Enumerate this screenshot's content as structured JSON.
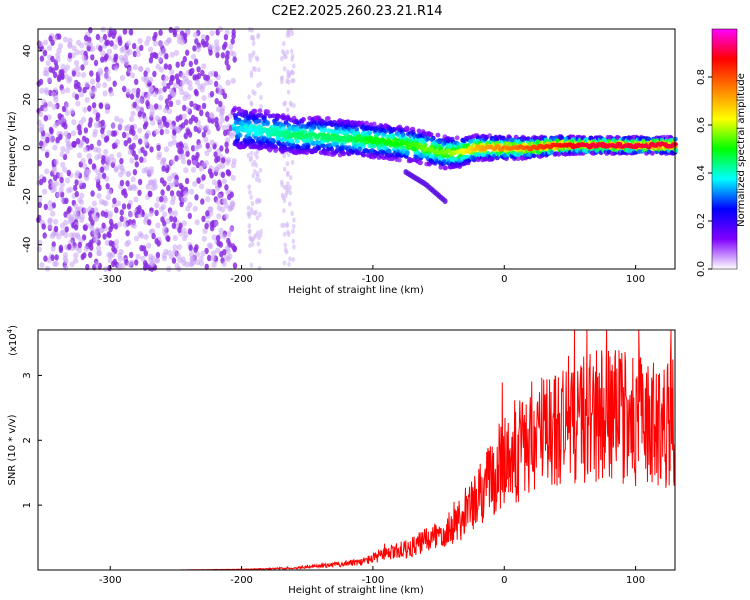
{
  "title": "C2E2.2025.260.23.21.R14",
  "chart_data": [
    {
      "type": "heatmap",
      "xlabel": "Height of straight line (km)",
      "ylabel": "Frequency (Hz)",
      "xlim": [
        -355,
        130
      ],
      "ylim": [
        -50,
        49
      ],
      "xticks": [
        -300,
        -200,
        -100,
        0,
        100
      ],
      "yticks": [
        -40,
        -20,
        0,
        20,
        40
      ],
      "colorbar": {
        "label": "Normalized spectral amplitude",
        "range": [
          0.0,
          1.0
        ],
        "ticks": [
          0.0,
          0.2,
          0.4,
          0.6,
          0.8
        ],
        "colors": [
          "#ffffff",
          "#8000ff",
          "#0000ff",
          "#00ffff",
          "#00ff00",
          "#ffff00",
          "#ff8000",
          "#ff0000",
          "#ff00ff"
        ]
      },
      "ridge": {
        "x": [
          -205,
          -180,
          -160,
          -140,
          -120,
          -100,
          -80,
          -60,
          -45,
          -35,
          -20,
          0,
          20,
          40,
          60,
          80,
          100,
          120,
          130
        ],
        "freq": [
          8,
          7,
          5,
          5,
          4,
          3,
          2,
          0,
          -2,
          -2,
          0,
          0,
          0,
          1,
          1,
          1,
          1,
          1,
          1
        ],
        "amplitude": [
          0.35,
          0.4,
          0.45,
          0.45,
          0.45,
          0.5,
          0.5,
          0.55,
          0.55,
          0.6,
          0.7,
          0.75,
          0.8,
          0.85,
          0.9,
          0.9,
          0.9,
          0.9,
          0.9
        ]
      },
      "branch": {
        "x": [
          -75,
          -60,
          -45
        ],
        "freq": [
          -10,
          -15,
          -22
        ]
      },
      "noise_region": [
        -355,
        -205
      ],
      "sparse_noise_bands": [
        [
          -195,
          -185
        ],
        [
          -170,
          -160
        ]
      ]
    },
    {
      "type": "line",
      "xlabel": "Height of straight line (km)",
      "ylabel": "SNR (10 * v/v)",
      "scale_label": "(x10",
      "scale_exponent": "4",
      "scale_close": ")",
      "xlim": [
        -355,
        130
      ],
      "ylim": [
        0,
        3.7
      ],
      "xticks": [
        -300,
        -200,
        -100,
        0,
        100
      ],
      "yticks": [
        1,
        2,
        3
      ],
      "color": "#ff0000",
      "series": {
        "name": "SNR",
        "x": [
          -355,
          -250,
          -200,
          -160,
          -130,
          -110,
          -100,
          -90,
          -80,
          -70,
          -60,
          -50,
          -40,
          -30,
          -20,
          -10,
          0,
          10,
          20,
          30,
          40,
          50,
          60,
          70,
          80,
          90,
          100,
          110,
          120,
          130
        ],
        "y": [
          0.0,
          0.0,
          0.01,
          0.03,
          0.08,
          0.12,
          0.18,
          0.25,
          0.3,
          0.35,
          0.45,
          0.55,
          0.7,
          0.85,
          1.1,
          1.4,
          1.7,
          1.85,
          2.0,
          2.1,
          2.2,
          2.3,
          2.35,
          2.4,
          2.4,
          2.35,
          2.3,
          2.25,
          2.25,
          2.3
        ]
      }
    }
  ]
}
